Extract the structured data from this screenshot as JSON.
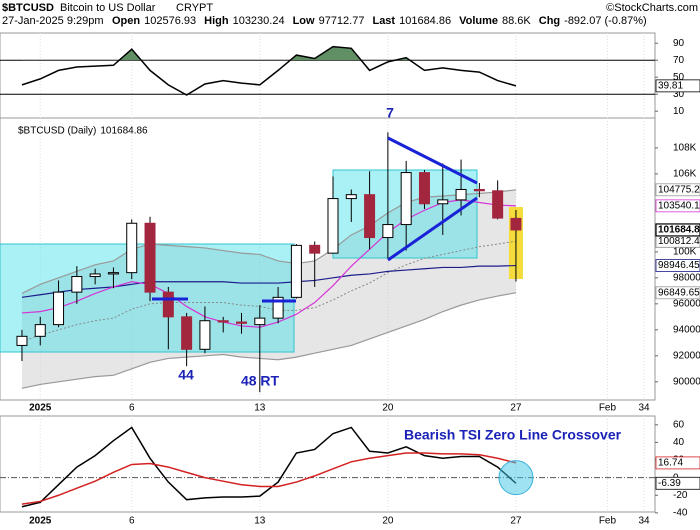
{
  "header": {
    "symbol": "$BTCUSD",
    "name": "Bitcoin to US Dollar",
    "exchange": "CRYPT",
    "credit": "©StockCharts.com",
    "datetime": "27-Jan-2025 9:29pm",
    "info": [
      [
        "Open",
        "102576.93"
      ],
      [
        "High",
        "103230.24"
      ],
      [
        "Low",
        "97712.77"
      ],
      [
        "Last",
        "101684.86"
      ],
      [
        "Volume",
        "88.6K"
      ],
      [
        "Chg",
        "-892.07 (-0.87%)"
      ]
    ]
  },
  "chart_data": [
    {
      "type": "line",
      "x": [
        0,
        1,
        2,
        3,
        4,
        5,
        6,
        7,
        8,
        9,
        10,
        11,
        12,
        13,
        14,
        15,
        16,
        17,
        18,
        19,
        20,
        21,
        22,
        23,
        24,
        25,
        26,
        27
      ],
      "xlim": [
        -1.2,
        34.6
      ],
      "ylim": [
        2,
        102
      ],
      "yticks": [
        90,
        70,
        50,
        30,
        10
      ],
      "hlines": [
        70,
        30
      ],
      "fill_above": 70,
      "fill_color": "#5f8f63",
      "series": [
        {
          "color": "#000000",
          "values": [
            41,
            48,
            58,
            62,
            63,
            64,
            83,
            58,
            41,
            29,
            42,
            46,
            43,
            41,
            58,
            76,
            72,
            86,
            84,
            58,
            68,
            73,
            58,
            61,
            58,
            56,
            46,
            39.81
          ]
        }
      ]
    },
    {
      "type": "candlestick",
      "legend_label": "$BTCUSD (Daily)",
      "x": [
        0,
        1,
        2,
        3,
        4,
        5,
        6,
        7,
        8,
        9,
        10,
        11,
        12,
        13,
        14,
        15,
        16,
        17,
        18,
        19,
        20,
        21,
        22,
        23,
        24,
        25,
        26,
        27
      ],
      "xlim": [
        -1.2,
        34.6
      ],
      "xticks": [
        {
          "value": 1,
          "label": "2025"
        },
        6,
        13,
        20,
        27,
        {
          "value": 32,
          "label": "Feb"
        },
        34
      ],
      "ylim": [
        88600,
        110300
      ],
      "yticks": [
        90000,
        92000,
        94000,
        96000,
        98000,
        {
          "value": 100000,
          "label": "100K"
        },
        {
          "value": 106000,
          "label": "106K"
        },
        {
          "value": 108000,
          "label": "108K"
        }
      ],
      "up_color": "#ffffff",
      "down_color": "#a3263f",
      "open": [
        92800,
        93500,
        94400,
        96900,
        98100,
        98300,
        98400,
        102200,
        96900,
        95000,
        92500,
        94700,
        94600,
        94400,
        94900,
        96500,
        100500,
        99900,
        104100,
        104400,
        101100,
        102100,
        106100,
        103700,
        104000,
        104800,
        104700,
        102576.93
      ],
      "high": [
        94000,
        95000,
        97800,
        98900,
        98700,
        98800,
        102500,
        102700,
        97300,
        95300,
        95800,
        95000,
        95300,
        95900,
        97300,
        100600,
        100800,
        105800,
        104800,
        106200,
        109200,
        107000,
        106300,
        106800,
        107100,
        105300,
        105500,
        103230.24
      ],
      "low": [
        91600,
        92800,
        94200,
        96000,
        97500,
        97200,
        97900,
        96200,
        92500,
        91200,
        92200,
        93800,
        93700,
        89200,
        94500,
        96400,
        97300,
        99900,
        102300,
        100200,
        99500,
        100100,
        103300,
        101300,
        102800,
        104200,
        102500,
        97712.77
      ],
      "close": [
        93500,
        94400,
        96900,
        98100,
        98300,
        98400,
        102200,
        96900,
        95000,
        92500,
        94700,
        94600,
        94500,
        94900,
        96500,
        100500,
        99900,
        104100,
        104400,
        101100,
        102100,
        106100,
        103700,
        104000,
        104800,
        104700,
        102600,
        101684.86
      ],
      "overlays": [
        {
          "color": "#999999",
          "values": [
            96800,
            97500,
            98000,
            98500,
            99000,
            99300,
            100200,
            100600,
            100500,
            100400,
            100300,
            100100,
            99900,
            99800,
            99300,
            99100,
            99300,
            100200,
            101300,
            102000,
            103000,
            103800,
            104200,
            104300,
            104400,
            104500,
            104600,
            104775.27
          ]
        },
        {
          "color": "#999999",
          "values": [
            89500,
            89800,
            90000,
            90200,
            90400,
            90500,
            91000,
            91500,
            91800,
            91900,
            92000,
            92100,
            91900,
            91800,
            91700,
            91900,
            92200,
            92500,
            92800,
            93300,
            93800,
            94300,
            94800,
            95400,
            95900,
            96300,
            96600,
            96849.65
          ]
        },
        {
          "color": "#888888",
          "dash": true,
          "values": [
            93100,
            93600,
            94000,
            94400,
            94700,
            94900,
            95600,
            96000,
            96100,
            96100,
            96100,
            96100,
            95900,
            95800,
            95500,
            95500,
            95700,
            96300,
            97000,
            97600,
            98400,
            99000,
            99500,
            99800,
            100100,
            100400,
            100600,
            100812.46
          ]
        },
        {
          "color": "#1c1c8c",
          "values": [
            96500,
            96700,
            96900,
            97100,
            97200,
            97300,
            97500,
            97700,
            97700,
            97700,
            97700,
            97700,
            97600,
            97600,
            97600,
            97700,
            97800,
            98000,
            98200,
            98300,
            98500,
            98600,
            98700,
            98800,
            98800,
            98900,
            98900,
            98946.45
          ]
        },
        {
          "color": "#d633d6",
          "values": [
            95300,
            95400,
            95700,
            96200,
            96800,
            97300,
            97700,
            97500,
            96800,
            95800,
            95000,
            94600,
            94300,
            94200,
            94600,
            95200,
            96100,
            97400,
            98900,
            100200,
            101500,
            102500,
            103200,
            103800,
            104000,
            103800,
            103600,
            103540.11
          ]
        }
      ],
      "annotations": [
        "7",
        "44",
        "48 RT"
      ]
    },
    {
      "type": "line",
      "x": [
        0,
        1,
        2,
        3,
        4,
        5,
        6,
        7,
        8,
        9,
        10,
        11,
        12,
        13,
        14,
        15,
        16,
        17,
        18,
        19,
        20,
        21,
        22,
        23,
        24,
        25,
        26,
        27
      ],
      "xlim": [
        -1.2,
        34.6
      ],
      "xticks": [
        {
          "value": 1,
          "label": "2025"
        },
        6,
        13,
        20,
        27,
        {
          "value": 32,
          "label": "Feb"
        },
        34
      ],
      "ylim": [
        -39,
        70
      ],
      "yticks": [
        60,
        40,
        20,
        0,
        -20,
        -40
      ],
      "hlines": [
        0
      ],
      "series": [
        {
          "color": "#000000",
          "values": [
            -33,
            -28,
            -8,
            12,
            25,
            42,
            57,
            22,
            -5,
            -25,
            -23,
            -22,
            -22,
            -21,
            -5,
            28,
            32,
            50,
            57,
            30,
            28,
            35,
            25,
            22,
            24,
            24,
            12,
            -6.39
          ]
        },
        {
          "color": "#d42020",
          "values": [
            -30,
            -27,
            -20,
            -12,
            -4,
            6,
            15,
            16,
            12,
            6,
            0,
            -4,
            -8,
            -10,
            -10,
            -5,
            2,
            10,
            18,
            22,
            25,
            28,
            28,
            27,
            27,
            26,
            22,
            16.74
          ]
        }
      ],
      "annotations": [
        "Bearish TSI Zero Line Crossover"
      ]
    }
  ]
}
